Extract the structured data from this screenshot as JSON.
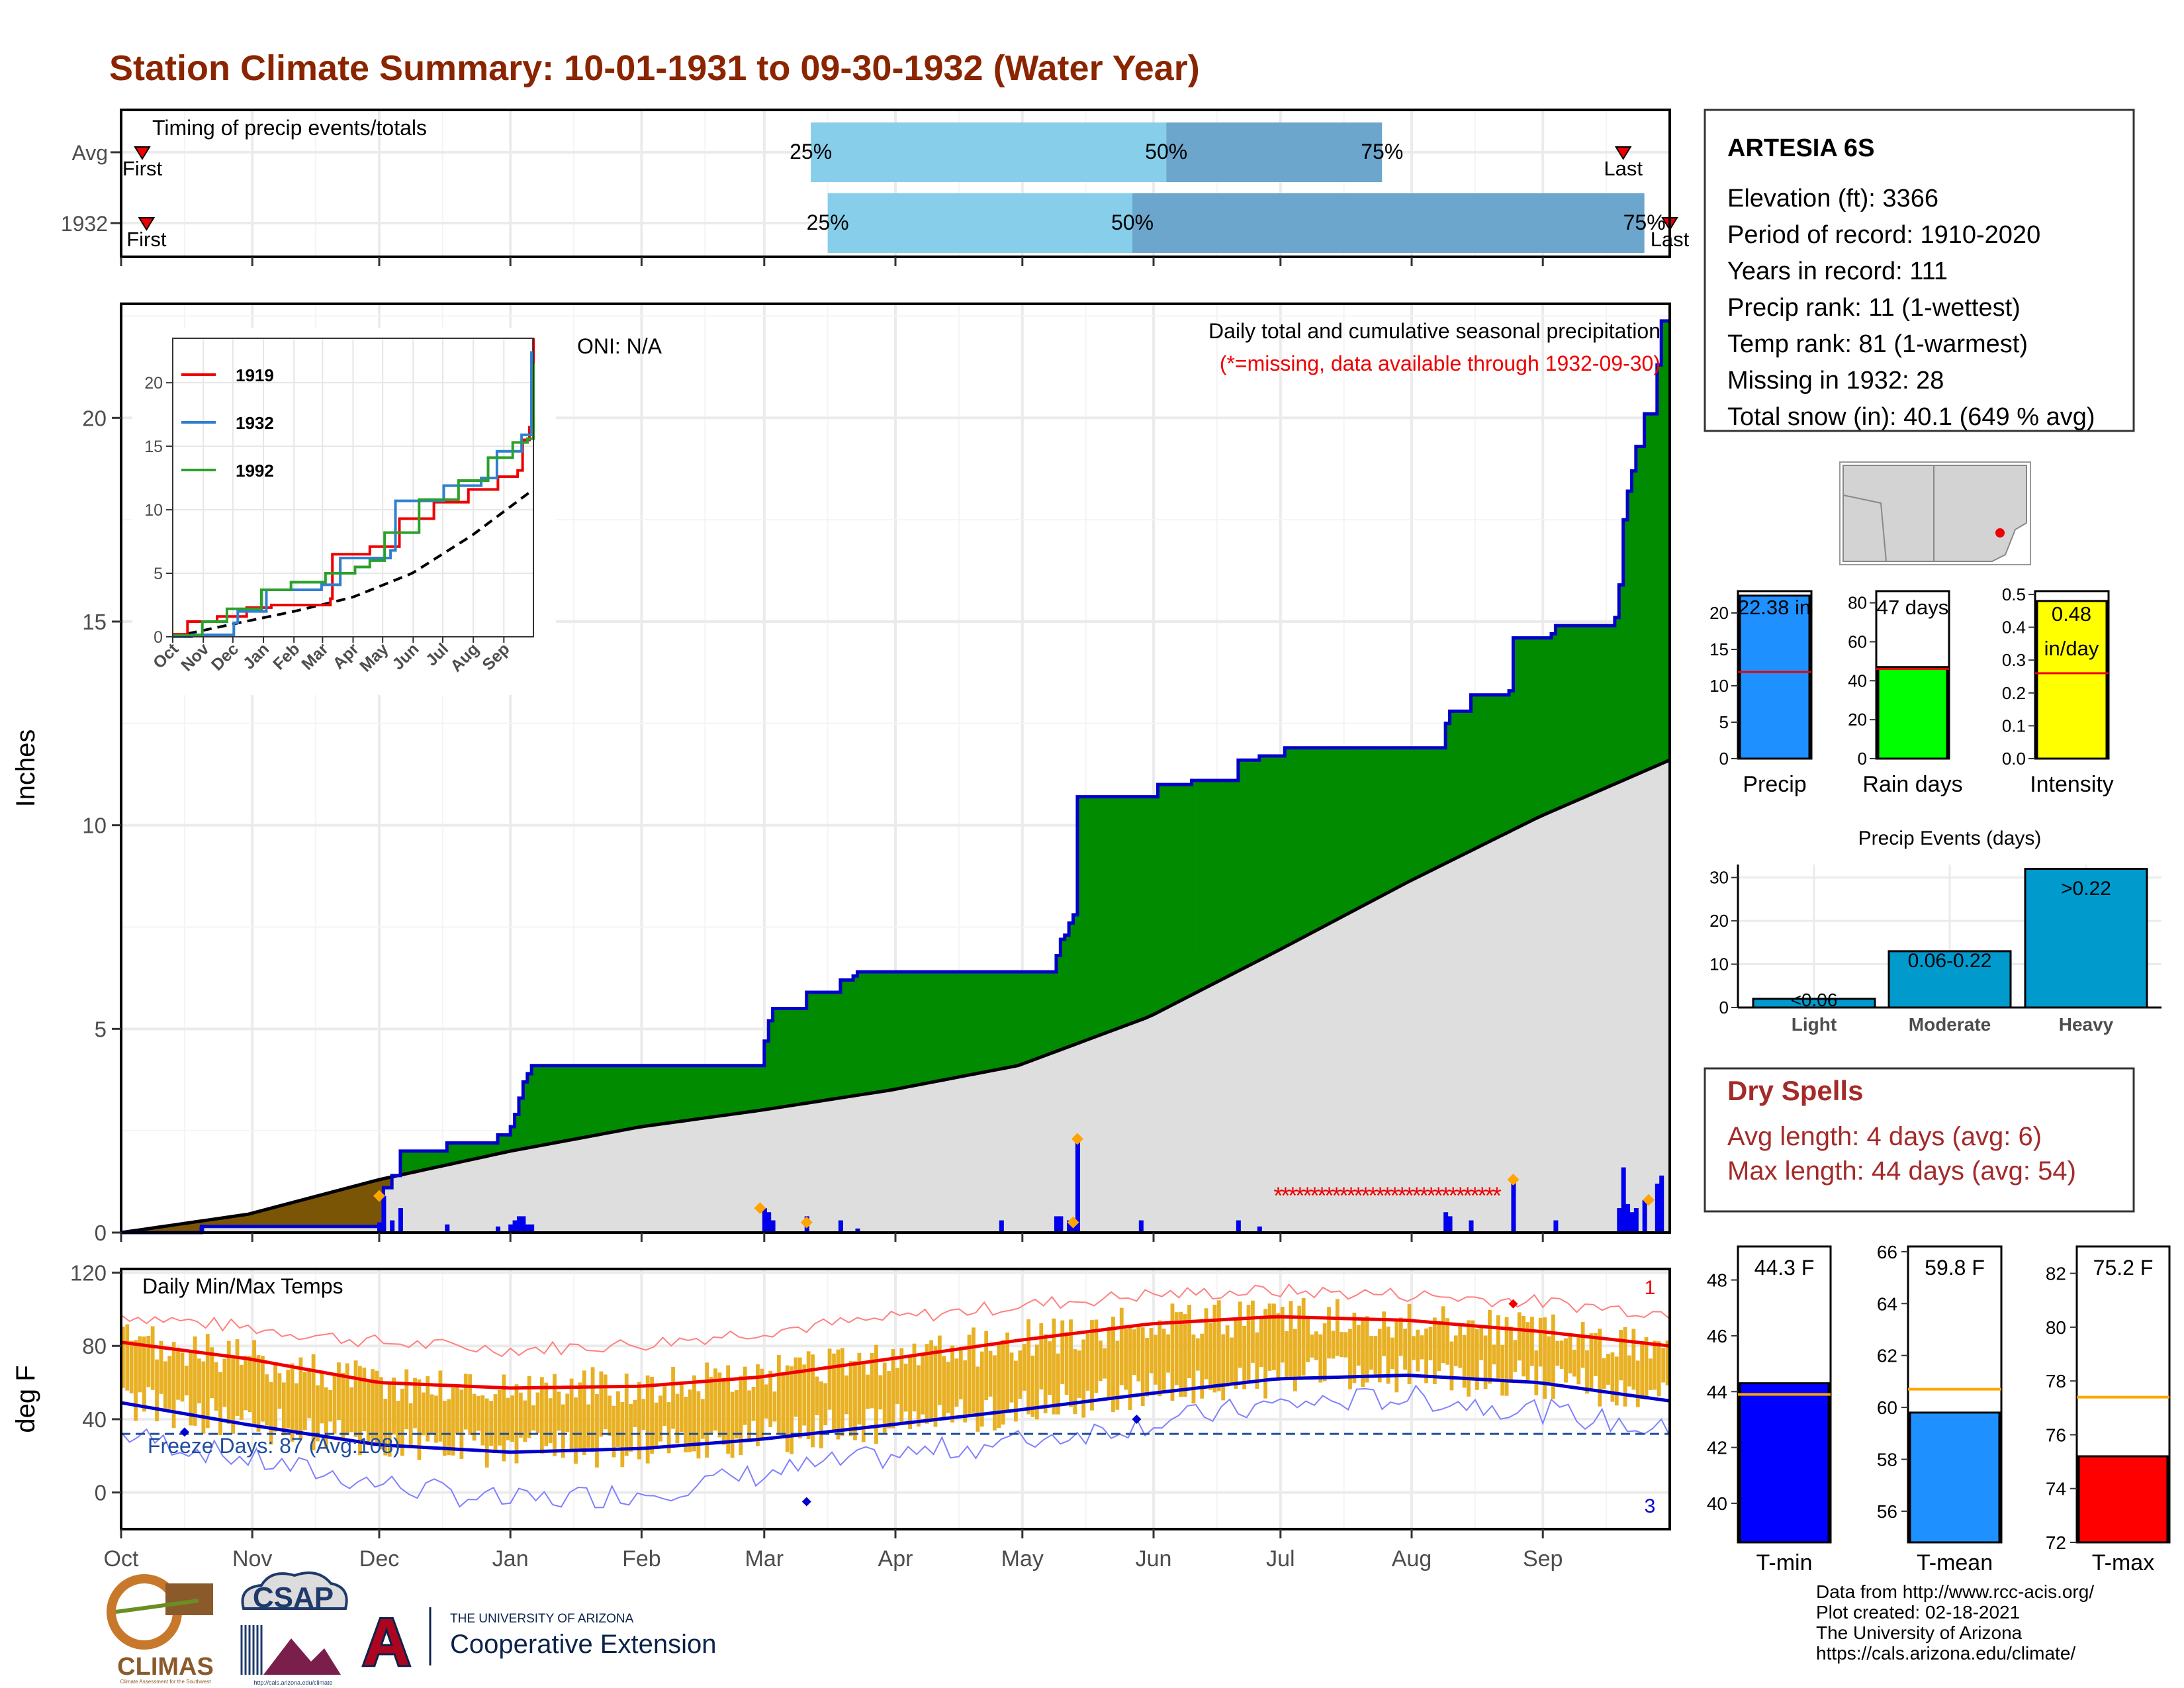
{
  "title": "Station Climate Summary: 10-01-1931 to 09-30-1932 (Water Year)",
  "colors": {
    "title": "#8B2500",
    "ltblue": "#87CEEB",
    "medblue": "#6CA6CD",
    "green": "#008B00",
    "brown": "#7B5506",
    "gray": "#DEDEDE",
    "precipBlue": "#0000EE",
    "orange": "#FFA500",
    "tempbar": "#E8B023",
    "red": "#EE0000",
    "navy": "#0000CD",
    "dryspell": "#A52A2A"
  },
  "timing": {
    "label": "Timing of precip events/totals",
    "rows": [
      {
        "name": "Avg",
        "first_label": "First",
        "last_label": "Last",
        "first_doy": 5,
        "last_doy": 355,
        "q25_doy": 163,
        "q50_doy": 247,
        "q75_doy": 298
      },
      {
        "name": "1932",
        "first_label": "First",
        "last_label": "Last",
        "first_doy": 6,
        "last_doy": 366,
        "q25_doy": 167,
        "q50_doy": 239,
        "q75_doy": 360
      }
    ],
    "q_labels": [
      "25%",
      "50%",
      "75%"
    ]
  },
  "chart_data": [
    {
      "type": "area",
      "name": "main_precip",
      "title": "Daily total and cumulative seasonal precipitation",
      "subtitle": "(*=missing, data available through 1932-09-30)",
      "oni": "ONI: N/A",
      "ylabel": "Inches",
      "ylim": [
        0,
        22.8
      ],
      "yticks": [
        0,
        5,
        10,
        15,
        20
      ],
      "months": [
        "Oct",
        "Nov",
        "Dec",
        "Jan",
        "Feb",
        "Mar",
        "Apr",
        "May",
        "Jun",
        "Jul",
        "Aug",
        "Sep"
      ],
      "cumulative_1932": [
        [
          0,
          0
        ],
        [
          9,
          0
        ],
        [
          19,
          0.15
        ],
        [
          61,
          0.2
        ],
        [
          62,
          1.1
        ],
        [
          64,
          1.4
        ],
        [
          66,
          2.0
        ],
        [
          75,
          2.0
        ],
        [
          77,
          2.2
        ],
        [
          88,
          2.2
        ],
        [
          89,
          2.4
        ],
        [
          92,
          2.6
        ],
        [
          93,
          2.9
        ],
        [
          94,
          3.3
        ],
        [
          95,
          3.7
        ],
        [
          96,
          3.9
        ],
        [
          97,
          4.1
        ],
        [
          151,
          4.1
        ],
        [
          152,
          4.7
        ],
        [
          153,
          5.2
        ],
        [
          154,
          5.5
        ],
        [
          161,
          5.5
        ],
        [
          162,
          5.9
        ],
        [
          169,
          5.9
        ],
        [
          170,
          6.2
        ],
        [
          173,
          6.3
        ],
        [
          174,
          6.4
        ],
        [
          220,
          6.4
        ],
        [
          221,
          6.8
        ],
        [
          221.9,
          6.8
        ],
        [
          222,
          7.2
        ],
        [
          223,
          7.3
        ],
        [
          224,
          7.6
        ],
        [
          225,
          7.8
        ],
        [
          226,
          10.7
        ],
        [
          244,
          10.7
        ],
        [
          245,
          11.0
        ],
        [
          253,
          11.1
        ],
        [
          264,
          11.6
        ],
        [
          269,
          11.7
        ],
        [
          275,
          11.9
        ],
        [
          310,
          11.9
        ],
        [
          313,
          12.5
        ],
        [
          314,
          12.8
        ],
        [
          319,
          13.2
        ],
        [
          328,
          13.3
        ],
        [
          329,
          14.6
        ],
        [
          338,
          14.7
        ],
        [
          339,
          14.9
        ],
        [
          353,
          15.1
        ],
        [
          354,
          15.9
        ],
        [
          355,
          17.5
        ],
        [
          356,
          18.2
        ],
        [
          357,
          18.7
        ],
        [
          358,
          19.3
        ],
        [
          360,
          20.1
        ],
        [
          363,
          21.3
        ],
        [
          364,
          22.38
        ],
        [
          366,
          22.38
        ]
      ],
      "avg_cumulative": [
        [
          0,
          0
        ],
        [
          30,
          0.45
        ],
        [
          61,
          1.3
        ],
        [
          92,
          2.0
        ],
        [
          123,
          2.6
        ],
        [
          151,
          3.0
        ],
        [
          182,
          3.5
        ],
        [
          212,
          4.1
        ],
        [
          243,
          5.3
        ],
        [
          273,
          6.9
        ],
        [
          304,
          8.6
        ],
        [
          335,
          10.2
        ],
        [
          366,
          11.6
        ]
      ],
      "daily_bars": [
        [
          19,
          0.15
        ],
        [
          61,
          0.25
        ],
        [
          62,
          0.9
        ],
        [
          64,
          0.3
        ],
        [
          66,
          0.6
        ],
        [
          77,
          0.2
        ],
        [
          89,
          0.15
        ],
        [
          92,
          0.2
        ],
        [
          93,
          0.3
        ],
        [
          94,
          0.4
        ],
        [
          95,
          0.4
        ],
        [
          96,
          0.2
        ],
        [
          97,
          0.2
        ],
        [
          152,
          0.6
        ],
        [
          153,
          0.5
        ],
        [
          154,
          0.3
        ],
        [
          162,
          0.4
        ],
        [
          170,
          0.3
        ],
        [
          174,
          0.1
        ],
        [
          208,
          0.3
        ],
        [
          221,
          0.4
        ],
        [
          222,
          0.4
        ],
        [
          224,
          0.3
        ],
        [
          225,
          0.2
        ],
        [
          226,
          2.3
        ],
        [
          241,
          0.3
        ],
        [
          264,
          0.3
        ],
        [
          269,
          0.15
        ],
        [
          313,
          0.5
        ],
        [
          314,
          0.4
        ],
        [
          319,
          0.3
        ],
        [
          329,
          1.3
        ],
        [
          339,
          0.3
        ],
        [
          354,
          0.6
        ],
        [
          355,
          1.6
        ],
        [
          356,
          0.7
        ],
        [
          357,
          0.5
        ],
        [
          358,
          0.6
        ],
        [
          360,
          0.8
        ],
        [
          363,
          1.2
        ],
        [
          364,
          1.4
        ]
      ],
      "missing_range_doy": [
        273,
        303
      ],
      "missing_symbol": "*"
    },
    {
      "type": "line",
      "name": "inset_cumulative",
      "series": [
        {
          "name": "1919",
          "color": "#EE0000",
          "points": [
            [
              0,
              0.2
            ],
            [
              15,
              1.2
            ],
            [
              45,
              1.6
            ],
            [
              75,
              2.3
            ],
            [
              100,
              2.5
            ],
            [
              160,
              3.0
            ],
            [
              162,
              6.5
            ],
            [
              200,
              7.1
            ],
            [
              230,
              9.3
            ],
            [
              265,
              10.6
            ],
            [
              300,
              11.6
            ],
            [
              330,
              12.6
            ],
            [
              350,
              13.1
            ],
            [
              355,
              15.5
            ],
            [
              362,
              16.5
            ],
            [
              366,
              23.5
            ]
          ]
        },
        {
          "name": "1932",
          "color": "#2F7FD0",
          "points": [
            [
              0,
              0
            ],
            [
              19,
              0.15
            ],
            [
              62,
              1.1
            ],
            [
              66,
              2.0
            ],
            [
              95,
              3.7
            ],
            [
              151,
              4.1
            ],
            [
              170,
              6.2
            ],
            [
              221,
              6.8
            ],
            [
              226,
              10.7
            ],
            [
              275,
              11.9
            ],
            [
              313,
              12.5
            ],
            [
              329,
              14.6
            ],
            [
              354,
              15.9
            ],
            [
              364,
              22.38
            ],
            [
              366,
              22.38
            ]
          ]
        },
        {
          "name": "1992",
          "color": "#2CA02C",
          "points": [
            [
              0,
              0.1
            ],
            [
              30,
              1.2
            ],
            [
              55,
              2.2
            ],
            [
              90,
              3.7
            ],
            [
              120,
              4.3
            ],
            [
              155,
              5.0
            ],
            [
              185,
              5.5
            ],
            [
              200,
              6.0
            ],
            [
              215,
              8.2
            ],
            [
              250,
              10.8
            ],
            [
              290,
              12.3
            ],
            [
              320,
              14.1
            ],
            [
              345,
              15.3
            ],
            [
              360,
              15.6
            ],
            [
              366,
              21.5
            ]
          ]
        }
      ],
      "avg_dashed": [
        [
          0,
          0
        ],
        [
          61,
          1.0
        ],
        [
          123,
          2.0
        ],
        [
          182,
          3.1
        ],
        [
          243,
          5.0
        ],
        [
          304,
          8.0
        ],
        [
          366,
          11.6
        ]
      ],
      "ylim": [
        0,
        23.5
      ],
      "yticks": [
        0,
        5,
        10,
        15,
        20
      ],
      "months": [
        "Oct",
        "Nov",
        "Dec",
        "Jan",
        "Feb",
        "Mar",
        "Apr",
        "May",
        "Jun",
        "Jul",
        "Aug",
        "Sep"
      ]
    },
    {
      "type": "line",
      "name": "daily_temps",
      "title": "Daily Min/Max Temps",
      "ylabel": "deg F",
      "ylim": [
        -20,
        122
      ],
      "yticks": [
        0,
        40,
        80,
        120
      ],
      "months": [
        "Oct",
        "Nov",
        "Dec",
        "Jan",
        "Feb",
        "Mar",
        "Apr",
        "May",
        "Jun",
        "Jul",
        "Aug",
        "Sep"
      ],
      "freeze_text": "Freeze Days: 87 (Avg:108)",
      "freeze_line": 32,
      "record_high_count": "1",
      "record_low_count": "3",
      "avg_max_knots": [
        [
          0,
          82
        ],
        [
          30,
          73
        ],
        [
          61,
          60
        ],
        [
          92,
          57
        ],
        [
          123,
          58
        ],
        [
          151,
          63
        ],
        [
          182,
          73
        ],
        [
          212,
          83
        ],
        [
          243,
          92
        ],
        [
          273,
          96
        ],
        [
          304,
          94
        ],
        [
          335,
          88
        ],
        [
          366,
          80
        ]
      ],
      "avg_min_knots": [
        [
          0,
          49
        ],
        [
          30,
          37
        ],
        [
          61,
          26
        ],
        [
          92,
          22
        ],
        [
          123,
          24
        ],
        [
          151,
          29
        ],
        [
          182,
          37
        ],
        [
          212,
          45
        ],
        [
          243,
          54
        ],
        [
          273,
          62
        ],
        [
          304,
          64
        ],
        [
          335,
          60
        ],
        [
          366,
          50
        ]
      ],
      "rec_max_knots": [
        [
          0,
          97
        ],
        [
          30,
          90
        ],
        [
          61,
          82
        ],
        [
          92,
          78
        ],
        [
          123,
          81
        ],
        [
          151,
          88
        ],
        [
          182,
          95
        ],
        [
          212,
          102
        ],
        [
          243,
          108
        ],
        [
          273,
          110
        ],
        [
          304,
          108
        ],
        [
          335,
          104
        ],
        [
          366,
          98
        ]
      ],
      "rec_min_knots": [
        [
          0,
          32
        ],
        [
          30,
          18
        ],
        [
          61,
          5
        ],
        [
          92,
          -5
        ],
        [
          123,
          0
        ],
        [
          151,
          10
        ],
        [
          182,
          20
        ],
        [
          212,
          28
        ],
        [
          243,
          38
        ],
        [
          273,
          48
        ],
        [
          304,
          52
        ],
        [
          335,
          45
        ],
        [
          366,
          33
        ]
      ]
    },
    {
      "type": "bar",
      "name": "precip_summary",
      "categories": [
        "Precip",
        "Rain days",
        "Intensity"
      ],
      "values": [
        22.38,
        47,
        0.48
      ],
      "averages": [
        11.9,
        46,
        0.26
      ],
      "labels": [
        "22.38 in",
        "47 days",
        "0.48",
        "in/day"
      ],
      "ylims": [
        [
          0,
          23
        ],
        [
          0,
          86
        ],
        [
          0,
          0.51
        ]
      ],
      "yticks": [
        [
          0,
          5,
          10,
          15,
          20
        ],
        [
          0,
          20,
          40,
          60,
          80
        ],
        [
          0.0,
          0.1,
          0.2,
          0.3,
          0.4,
          0.5
        ]
      ]
    },
    {
      "type": "bar",
      "name": "precip_events",
      "title": "Precip Events (days)",
      "categories": [
        "Light",
        "Moderate",
        "Heavy"
      ],
      "values": [
        2,
        13,
        32
      ],
      "labels": [
        "<0.06",
        "0.06-0.22",
        ">0.22"
      ],
      "ylim": [
        0,
        33
      ],
      "yticks": [
        0,
        10,
        20,
        30
      ]
    },
    {
      "type": "bar",
      "name": "temp_summary",
      "categories": [
        "T-min",
        "T-mean",
        "T-max"
      ],
      "values": [
        44.3,
        59.8,
        75.2
      ],
      "averages": [
        43.9,
        60.7,
        77.4
      ],
      "labels": [
        "44.3 F",
        "59.8 F",
        "75.2 F"
      ],
      "ylims": [
        [
          38.6,
          49.2
        ],
        [
          54.8,
          66.2
        ],
        [
          72.0,
          83.0
        ]
      ],
      "yticks": [
        [
          40,
          42,
          44,
          46,
          48
        ],
        [
          56,
          58,
          60,
          62,
          64,
          66
        ],
        [
          72,
          74,
          76,
          78,
          80,
          82
        ]
      ]
    }
  ],
  "station": {
    "name": "ARTESIA 6S",
    "lines": [
      "Elevation (ft): 3366",
      "Period of record: 1910-2020",
      "Years in record: 111",
      "Precip rank: 11 (1-wettest)",
      "Temp rank: 81 (1-warmest)",
      "Missing in 1932: 28",
      "Total snow (in): 40.1 (649 % avg)"
    ]
  },
  "dry_spells": {
    "title": "Dry Spells",
    "lines": [
      "Avg length: 4 days (avg: 6)",
      "Max length: 44 days (avg: 54)"
    ]
  },
  "credits": [
    "Data from http://www.rcc-acis.org/",
    "Plot created: 02-18-2021",
    "The University of Arizona",
    "https://cals.arizona.edu/climate/"
  ],
  "logos": {
    "climas": "CLIMAS",
    "climas_sub": "Climate Assessment for the Southwest",
    "csap": "CSAP",
    "csap_url": "http://cals.arizona.edu/climate",
    "ua_small": "THE UNIVERSITY OF ARIZONA",
    "ua_big": "Cooperative Extension",
    "ua_letter": "A"
  }
}
